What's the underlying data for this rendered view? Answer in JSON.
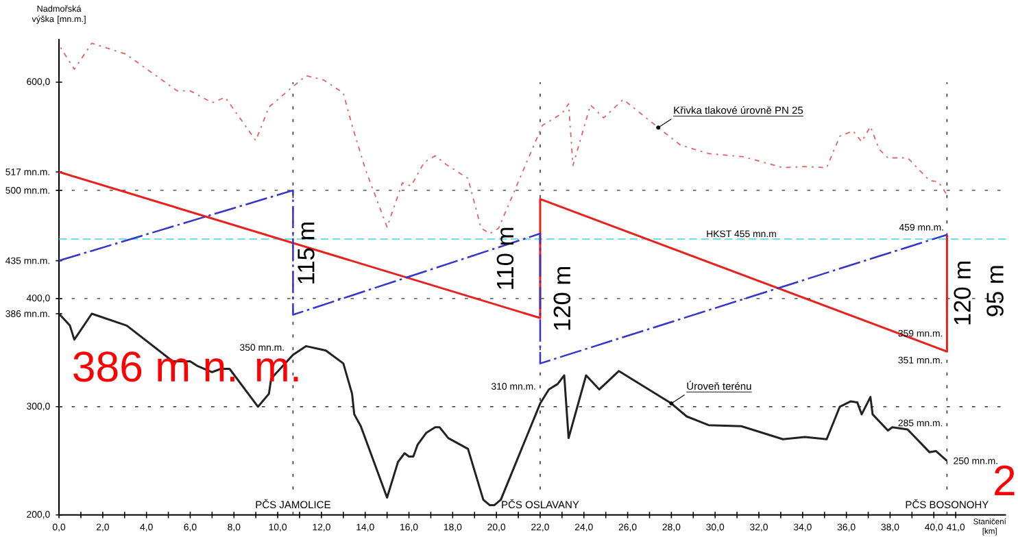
{
  "chart_data": {
    "type": "line",
    "xlabel": "Staničení [km]",
    "ylabel": "Nadmořská výška [mn.m.]",
    "xlim": [
      0,
      43.3
    ],
    "ylim": [
      200,
      640
    ],
    "xticks": [
      {
        "value": 0,
        "label": "0,0"
      },
      {
        "value": 1,
        "label": null
      },
      {
        "value": 2,
        "label": "2,0"
      },
      {
        "value": 3,
        "label": null
      },
      {
        "value": 4,
        "label": "4,0"
      },
      {
        "value": 5,
        "label": null
      },
      {
        "value": 6,
        "label": "6,0"
      },
      {
        "value": 7,
        "label": null
      },
      {
        "value": 8,
        "label": "8,0"
      },
      {
        "value": 9,
        "label": null
      },
      {
        "value": 10,
        "label": "10,0"
      },
      {
        "value": 11,
        "label": null
      },
      {
        "value": 12,
        "label": "12,0"
      },
      {
        "value": 13,
        "label": null
      },
      {
        "value": 14,
        "label": "14,0"
      },
      {
        "value": 15,
        "label": null
      },
      {
        "value": 16,
        "label": "16,0"
      },
      {
        "value": 17,
        "label": null
      },
      {
        "value": 18,
        "label": "18,0"
      },
      {
        "value": 19,
        "label": null
      },
      {
        "value": 20,
        "label": "20,0"
      },
      {
        "value": 21,
        "label": null
      },
      {
        "value": 22,
        "label": "22,0"
      },
      {
        "value": 23,
        "label": null
      },
      {
        "value": 24,
        "label": "24,0"
      },
      {
        "value": 25,
        "label": null
      },
      {
        "value": 26,
        "label": "26,0"
      },
      {
        "value": 27,
        "label": null
      },
      {
        "value": 28,
        "label": "28,0"
      },
      {
        "value": 29,
        "label": null
      },
      {
        "value": 30,
        "label": "30,0"
      },
      {
        "value": 31,
        "label": null
      },
      {
        "value": 32,
        "label": "32,0"
      },
      {
        "value": 33,
        "label": null
      },
      {
        "value": 34,
        "label": "34,0"
      },
      {
        "value": 35,
        "label": null
      },
      {
        "value": 36,
        "label": "36,0"
      },
      {
        "value": 37,
        "label": null
      },
      {
        "value": 38,
        "label": "38,0"
      },
      {
        "value": 39,
        "label": null
      },
      {
        "value": 40,
        "label": "40,0"
      },
      {
        "value": 41,
        "label": "41,0"
      }
    ],
    "yticks": [
      {
        "value": 200,
        "label": "200,0"
      },
      {
        "value": 300,
        "label": "300,0"
      },
      {
        "value": 386,
        "label": "386 mn.m."
      },
      {
        "value": 400,
        "label": "400,0"
      },
      {
        "value": 435,
        "label": "435 mn.m."
      },
      {
        "value": 500,
        "label": "500 mn.m."
      },
      {
        "value": 517,
        "label": "517 mn.m."
      },
      {
        "value": 600,
        "label": "600,0"
      }
    ],
    "series": [
      {
        "color": "#e06666",
        "line_style": "dotted",
        "x": [
          0.07,
          0.7,
          1.5,
          3.05,
          5.4,
          6.0,
          7.0,
          7.6,
          9.0,
          9.6,
          10.7,
          11.3,
          12.1,
          13.0,
          13.4,
          14.0,
          15.0,
          15.7,
          16.1,
          16.7,
          17.2,
          17.7,
          18.7,
          19.3,
          19.7,
          20.1,
          20.9,
          22.1,
          23.0,
          23.3,
          23.5,
          24.3,
          24.9,
          25.8,
          27.4,
          28.4,
          29.7,
          31.3,
          33.1,
          34.1,
          35.1,
          35.7,
          36.3,
          36.7,
          37.1,
          37.5,
          37.9,
          38.8,
          39.8,
          40.2,
          40.6
        ],
        "values": [
          632,
          612,
          636,
          626,
          592,
          592,
          581,
          586,
          546,
          577,
          596,
          606,
          602,
          590,
          560,
          520,
          466,
          507,
          504,
          526,
          532,
          524,
          511,
          465,
          460,
          465,
          503,
          560,
          571,
          580,
          523,
          579,
          567,
          584,
          558,
          542,
          534,
          531,
          521,
          522,
          521,
          550,
          555,
          545,
          559,
          538,
          530,
          530,
          509,
          508,
          496
        ]
      },
      {
        "color": "#e8211c",
        "line_style": "solid",
        "x": [
          0,
          22,
          22,
          40.6,
          40.6
        ],
        "values": [
          517,
          382,
          492,
          351,
          459
        ]
      },
      {
        "color": "#3535c8",
        "line_style": "dashed",
        "x": [
          0,
          10.7,
          10.7,
          22,
          22,
          40.6
        ],
        "values": [
          435,
          500,
          385,
          460,
          340,
          459
        ]
      },
      {
        "color": "#222222",
        "line_style": "solid",
        "x": [
          0,
          0.5,
          0.7,
          1.5,
          3.1,
          5.2,
          6.0,
          6.3,
          7.0,
          7.4,
          7.8,
          9.1,
          9.6,
          9.7,
          10.7,
          11.3,
          12.2,
          13.0,
          13.4,
          13.5,
          13.8,
          15.0,
          15.5,
          15.8,
          16.0,
          16.2,
          16.4,
          16.8,
          17.2,
          17.4,
          17.8,
          18.7,
          19.4,
          19.7,
          19.9,
          20.2,
          22.0,
          22.4,
          22.8,
          23.1,
          23.3,
          24.1,
          24.7,
          25.6,
          28.0,
          28.7,
          29.7,
          31.2,
          33.1,
          34.1,
          35.1,
          35.7,
          36.2,
          36.5,
          36.7,
          37.1,
          37.2,
          37.9,
          38.1,
          38.8,
          39.8,
          40.1,
          40.6
        ],
        "values": [
          386,
          375,
          362,
          386,
          375,
          342,
          342,
          338,
          332,
          335,
          335,
          300,
          312,
          326,
          348,
          356,
          352,
          340,
          312,
          293,
          282,
          216,
          249,
          257,
          254,
          254,
          265,
          276,
          281,
          281,
          271,
          261,
          214,
          209,
          209,
          214,
          303,
          316,
          321,
          329,
          271,
          329,
          316,
          333,
          303,
          291,
          283,
          282,
          270,
          272,
          270,
          300,
          305,
          304,
          293,
          309,
          293,
          278,
          281,
          279,
          258,
          259,
          250
        ]
      }
    ],
    "ref_lines": [
      {
        "axis": "y",
        "value": 300,
        "color": "#333333",
        "line_style": "dotted"
      },
      {
        "axis": "y",
        "value": 400,
        "color": "#333333",
        "line_style": "dotted"
      },
      {
        "axis": "y",
        "value": 500,
        "color": "#333333",
        "line_style": "dotted"
      },
      {
        "axis": "y",
        "value": 455,
        "color": "#3fd3e3",
        "line_style": "dashed",
        "label": "HKST 455 mn.m"
      },
      {
        "axis": "x",
        "value": 10.7,
        "color": "#333333",
        "line_style": "dotted",
        "label": "PČS JAMOLICE"
      },
      {
        "axis": "x",
        "value": 22,
        "color": "#333333",
        "line_style": "dotted",
        "label": "PČS OSLAVANY"
      },
      {
        "axis": "x",
        "value": 40.6,
        "color": "#333333",
        "line_style": "dotted",
        "label": "PČS BOSONOHY"
      }
    ],
    "annotations": [
      {
        "text": "Křivka tlakové úrovně PN 25",
        "x": 27.4,
        "y": 558
      },
      {
        "text": "Úroveň terénu",
        "x": 28.0,
        "y": 303
      },
      {
        "text": "350 mn.m.",
        "x": 10.7,
        "y": 348
      },
      {
        "text": "310 mn.m.",
        "x": 22,
        "y": 310
      },
      {
        "text": "459 mn.m.",
        "x": 40.6,
        "y": 459
      },
      {
        "text": "359 mn.m.",
        "x": 40.6,
        "y": 359
      },
      {
        "text": "351 mn.m.",
        "x": 40.6,
        "y": 351
      },
      {
        "text": "285 mn.m.",
        "x": 40.6,
        "y": 285
      },
      {
        "text": "250 mn.m.",
        "x": 40.6,
        "y": 250
      },
      "115 m",
      "110 m",
      "120 m",
      "120 m",
      "95 m",
      "386 m n. m.",
      "2"
    ]
  }
}
